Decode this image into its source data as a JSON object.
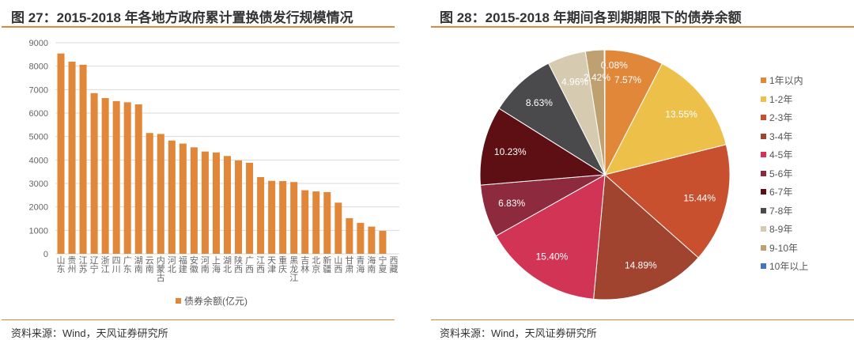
{
  "left": {
    "title": "图 27：2015-2018 年各地方政府累计置换债发行规模情况",
    "footer": "资料来源：Wind，天风证券研究所"
  },
  "right": {
    "title": "图 28：2015-2018 年期间各到期期限下的债券余额",
    "footer": "资料来源：Wind，天风证券研究所"
  },
  "chart_data": [
    {
      "type": "bar",
      "title": "",
      "xlabel": "",
      "ylabel": "",
      "ylim": [
        0,
        9000
      ],
      "yticks": [
        0,
        1000,
        2000,
        3000,
        4000,
        5000,
        6000,
        7000,
        8000,
        9000
      ],
      "grid": true,
      "legend": "bottom",
      "color": "#E0873A",
      "categories": [
        "山东",
        "贵州",
        "江苏",
        "辽宁",
        "浙江",
        "四川",
        "广东",
        "湖南",
        "云南",
        "内蒙古",
        "河北",
        "福建",
        "安徽",
        "河南",
        "上海",
        "湖北",
        "陕西",
        "广西",
        "江西",
        "天津",
        "重庆",
        "黑龙江",
        "吉林",
        "北京",
        "新疆",
        "山西",
        "甘肃",
        "青海",
        "海南",
        "宁夏",
        "西藏"
      ],
      "series": [
        {
          "name": "债券余额(亿元)",
          "values": [
            8540,
            8190,
            8060,
            6850,
            6640,
            6510,
            6460,
            6370,
            5150,
            5110,
            4830,
            4700,
            4540,
            4360,
            4320,
            4170,
            3980,
            3880,
            3270,
            3110,
            3100,
            3060,
            2710,
            2660,
            2630,
            2180,
            1520,
            1320,
            1160,
            980,
            0
          ]
        }
      ]
    },
    {
      "type": "pie",
      "title": "",
      "legend": "right",
      "categories": [
        "1年以内",
        "1-2年",
        "2-3年",
        "3-4年",
        "4-5年",
        "5-6年",
        "6-7年",
        "7-8年",
        "8-9年",
        "9-10年",
        "10年以上"
      ],
      "values": [
        7.57,
        13.55,
        15.44,
        14.89,
        15.4,
        6.83,
        10.23,
        8.63,
        4.96,
        2.42,
        0.08
      ],
      "labels": [
        "7.57%",
        "13.55%",
        "15.44%",
        "14.89%",
        "15.40%",
        "6.83%",
        "10.23%",
        "8.63%",
        "4.96%",
        "2.42%",
        "0.08%"
      ],
      "colors": [
        "#E0873A",
        "#EDC04A",
        "#C8502E",
        "#A0432F",
        "#D23455",
        "#8E2A3E",
        "#5E0F14",
        "#4A4A4C",
        "#D6CBB0",
        "#BFA070",
        "#4472C4"
      ]
    }
  ]
}
